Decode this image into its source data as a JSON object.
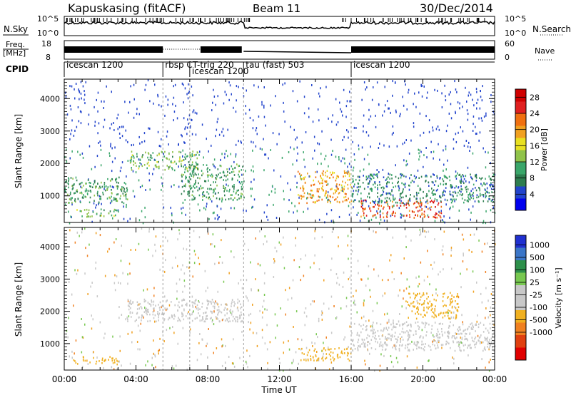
{
  "header": {
    "station": "Kapuskasing (fitACF)",
    "beam": "Beam 11",
    "date": "30/Dec/2014"
  },
  "noise_panel": {
    "left_label": "N.Sky",
    "right_label": "N.Search",
    "left_ticks": [
      "10^5",
      "10^0"
    ],
    "right_ticks": [
      "10^5",
      "10^0"
    ]
  },
  "freq_panel": {
    "left_label_1": "Freq.",
    "left_label_2": "[MHz]",
    "left_ticks": [
      "18",
      "8"
    ],
    "right_label": "Nave",
    "right_ticks": [
      "60",
      "0"
    ]
  },
  "cpid_panel": {
    "label": "CPID",
    "segments": [
      {
        "start_hour": 0.0,
        "name": "icescan 1200"
      },
      {
        "start_hour": 5.5,
        "name": "rbsp CT-trig 220"
      },
      {
        "start_hour": 7.0,
        "name": "icescan 1200"
      },
      {
        "start_hour": 10.0,
        "name": "tau (fast) 503"
      },
      {
        "start_hour": 16.0,
        "name": "icescan 1200"
      }
    ]
  },
  "colors": {
    "power_scale": [
      "#0000ee",
      "#2244cc",
      "#2e7d4f",
      "#3aa66a",
      "#90c34a",
      "#e8e020",
      "#f0a020",
      "#f07010",
      "#e02020",
      "#d00000"
    ],
    "velocity_scale": [
      "#2030d0",
      "#3b76c8",
      "#2d8f4a",
      "#78c850",
      "#c8c8c8",
      "#c8c8c8",
      "#f0b020",
      "#f08020",
      "#e04010",
      "#e00000"
    ]
  },
  "chart_data": [
    {
      "type": "heatmap",
      "name": "power",
      "ylabel": "Slant Range [km]",
      "xlim": [
        0,
        24
      ],
      "ylim": [
        180,
        4600
      ],
      "yticks": [
        1000,
        2000,
        3000,
        4000
      ],
      "colorbar": {
        "label": "Power [dB]",
        "ticks": [
          4,
          8,
          12,
          16,
          20,
          24,
          28
        ],
        "range": [
          0,
          30
        ]
      },
      "features": [
        {
          "time_start": 0.0,
          "time_end": 3.5,
          "range_start": 800,
          "range_end": 1600,
          "level": 10
        },
        {
          "time_start": 0.5,
          "time_end": 3.0,
          "range_start": 380,
          "range_end": 620,
          "level": 12
        },
        {
          "time_start": 3.5,
          "time_end": 7.5,
          "range_start": 1800,
          "range_end": 2400,
          "level": 12
        },
        {
          "time_start": 6.5,
          "time_end": 10.0,
          "range_start": 900,
          "range_end": 2000,
          "level": 10
        },
        {
          "time_start": 13.0,
          "time_end": 16.0,
          "range_start": 800,
          "range_end": 1800,
          "level": 20
        },
        {
          "time_start": 16.5,
          "time_end": 21.0,
          "range_start": 350,
          "range_end": 900,
          "level": 24
        },
        {
          "time_start": 16.0,
          "time_end": 24.0,
          "range_start": 800,
          "range_end": 1700,
          "level": 8
        }
      ]
    },
    {
      "type": "heatmap",
      "name": "velocity",
      "xlabel": "Time UT",
      "ylabel": "Slant Range [km]",
      "xlim": [
        0,
        24
      ],
      "ylim": [
        180,
        4600
      ],
      "yticks": [
        1000,
        2000,
        3000,
        4000
      ],
      "xticks": [
        "00:00",
        "04:00",
        "08:00",
        "12:00",
        "16:00",
        "20:00",
        "00:00"
      ],
      "colorbar": {
        "label": "Velocity [m s⁻¹]",
        "ticks": [
          "1000",
          "500",
          "100",
          "25",
          "-25",
          "-100",
          "-500",
          "-1000"
        ]
      },
      "features": [
        {
          "time_start": 3.5,
          "time_end": 10.0,
          "range_start": 1700,
          "range_end": 2400,
          "velocity": 0
        },
        {
          "time_start": 0.5,
          "time_end": 3.0,
          "range_start": 380,
          "range_end": 620,
          "velocity": -150
        },
        {
          "time_start": 13.0,
          "time_end": 16.0,
          "range_start": 500,
          "range_end": 900,
          "velocity": -200
        },
        {
          "time_start": 16.0,
          "time_end": 24.0,
          "range_start": 800,
          "range_end": 1700,
          "velocity": 0
        },
        {
          "time_start": 19.0,
          "time_end": 22.0,
          "range_start": 1800,
          "range_end": 2600,
          "velocity": -150
        }
      ]
    }
  ]
}
